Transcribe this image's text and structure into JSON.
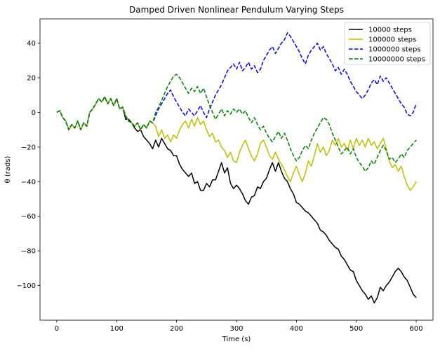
{
  "chart_data": {
    "type": "line",
    "title": "Damped Driven Nonlinear Pendulum Varying Steps",
    "xlabel": "Time (s)",
    "ylabel": "θ (rads)",
    "xlim": [
      -28,
      628
    ],
    "ylim": [
      -120,
      54
    ],
    "xticks": [
      0,
      100,
      200,
      300,
      400,
      500,
      600
    ],
    "yticks": [
      -100,
      -80,
      -60,
      -40,
      -20,
      0,
      20,
      40
    ],
    "legend_position": "top-right",
    "grid": false,
    "series": [
      {
        "name": "10000 steps",
        "color": "#000000",
        "dash": "solid",
        "x": [
          0,
          5,
          10,
          15,
          20,
          25,
          30,
          35,
          40,
          45,
          50,
          55,
          60,
          65,
          70,
          75,
          80,
          85,
          90,
          95,
          100,
          105,
          110,
          115,
          120,
          125,
          130,
          135,
          140,
          145,
          150,
          155,
          160,
          165,
          170,
          175,
          180,
          185,
          190,
          195,
          200,
          205,
          210,
          215,
          220,
          225,
          230,
          235,
          240,
          245,
          250,
          255,
          260,
          265,
          270,
          275,
          280,
          285,
          290,
          295,
          300,
          305,
          310,
          315,
          320,
          325,
          330,
          335,
          340,
          345,
          350,
          355,
          360,
          365,
          370,
          375,
          380,
          385,
          390,
          395,
          400,
          405,
          410,
          415,
          420,
          425,
          430,
          435,
          440,
          445,
          450,
          455,
          460,
          465,
          470,
          475,
          480,
          485,
          490,
          495,
          500,
          505,
          510,
          515,
          520,
          525,
          530,
          535,
          540,
          545,
          550,
          555,
          560,
          565,
          570,
          575,
          580,
          585,
          590,
          595,
          600
        ],
        "y": [
          0,
          1,
          -3,
          -5,
          -10,
          -7,
          -9,
          -5,
          -10,
          -6,
          -8,
          0,
          2,
          5,
          8,
          6,
          9,
          5,
          8,
          4,
          8,
          2,
          3,
          -4,
          -4,
          -6,
          -9,
          -11,
          -10,
          -14,
          -16,
          -18,
          -21,
          -16,
          -20,
          -15,
          -18,
          -21,
          -22,
          -25,
          -25,
          -30,
          -33,
          -35,
          -37,
          -35,
          -41,
          -40,
          -45,
          -45,
          -41,
          -43,
          -39,
          -39,
          -34,
          -29,
          -35,
          -32,
          -41,
          -44,
          -42,
          -44,
          -47,
          -51,
          -53,
          -49,
          -48,
          -43,
          -44,
          -40,
          -38,
          -33,
          -29,
          -34,
          -29,
          -34,
          -38,
          -40,
          -44,
          -47,
          -52,
          -53,
          -55,
          -57,
          -58,
          -60,
          -62,
          -64,
          -68,
          -69,
          -71,
          -74,
          -76,
          -78,
          -79,
          -83,
          -85,
          -88,
          -91,
          -92,
          -97,
          -100,
          -103,
          -105,
          -108,
          -106,
          -110,
          -107,
          -101,
          -103,
          -100,
          -98,
          -95,
          -92,
          -90,
          -92,
          -95,
          -97,
          -101,
          -105,
          -107
        ]
      },
      {
        "name": "100000 steps",
        "color": "#bfbf00",
        "dash": "solid",
        "x": [
          0,
          5,
          10,
          15,
          20,
          25,
          30,
          35,
          40,
          45,
          50,
          55,
          60,
          65,
          70,
          75,
          80,
          85,
          90,
          95,
          100,
          105,
          110,
          115,
          120,
          125,
          130,
          135,
          140,
          145,
          150,
          155,
          160,
          165,
          170,
          175,
          180,
          185,
          190,
          195,
          200,
          205,
          210,
          215,
          220,
          225,
          230,
          235,
          240,
          245,
          250,
          255,
          260,
          265,
          270,
          275,
          280,
          285,
          290,
          295,
          300,
          305,
          310,
          315,
          320,
          325,
          330,
          335,
          340,
          345,
          350,
          355,
          360,
          365,
          370,
          375,
          380,
          385,
          390,
          395,
          400,
          405,
          410,
          415,
          420,
          425,
          430,
          435,
          440,
          445,
          450,
          455,
          460,
          465,
          470,
          475,
          480,
          485,
          490,
          495,
          500,
          505,
          510,
          515,
          520,
          525,
          530,
          535,
          540,
          545,
          550,
          555,
          560,
          565,
          570,
          575,
          580,
          585,
          590,
          595,
          600
        ],
        "y": [
          0,
          1,
          -3,
          -5,
          -10,
          -7,
          -9,
          -5,
          -10,
          -6,
          -8,
          0,
          2,
          5,
          8,
          6,
          9,
          5,
          8,
          4,
          8,
          2,
          3,
          -2,
          -5,
          -6,
          -8,
          -6,
          -10,
          -7,
          -9,
          -5,
          -6,
          -8,
          -14,
          -10,
          -15,
          -13,
          -17,
          -13,
          -15,
          -10,
          -7,
          -5,
          -9,
          -4,
          -8,
          -3,
          -7,
          -5,
          -10,
          -14,
          -12,
          -17,
          -16,
          -20,
          -22,
          -26,
          -23,
          -28,
          -29,
          -23,
          -19,
          -16,
          -21,
          -25,
          -28,
          -24,
          -18,
          -16,
          -20,
          -25,
          -27,
          -23,
          -27,
          -30,
          -33,
          -37,
          -40,
          -35,
          -31,
          -36,
          -40,
          -35,
          -28,
          -31,
          -25,
          -18,
          -23,
          -20,
          -25,
          -22,
          -16,
          -19,
          -15,
          -20,
          -18,
          -22,
          -16,
          -21,
          -15,
          -19,
          -16,
          -20,
          -15,
          -19,
          -17,
          -21,
          -18,
          -15,
          -21,
          -28,
          -32,
          -30,
          -34,
          -31,
          -37,
          -42,
          -45,
          -43,
          -40
        ]
      },
      {
        "name": "1000000 steps",
        "color": "#0000ff",
        "dash": "dashed",
        "x": [
          0,
          5,
          10,
          15,
          20,
          25,
          30,
          35,
          40,
          45,
          50,
          55,
          60,
          65,
          70,
          75,
          80,
          85,
          90,
          95,
          100,
          105,
          110,
          115,
          120,
          125,
          130,
          135,
          140,
          145,
          150,
          155,
          160,
          165,
          170,
          175,
          180,
          185,
          190,
          195,
          200,
          205,
          210,
          215,
          220,
          225,
          230,
          235,
          240,
          245,
          250,
          255,
          260,
          265,
          270,
          275,
          280,
          285,
          290,
          295,
          300,
          305,
          310,
          315,
          320,
          325,
          330,
          335,
          340,
          345,
          350,
          355,
          360,
          365,
          370,
          375,
          380,
          385,
          390,
          395,
          400,
          405,
          410,
          415,
          420,
          425,
          430,
          435,
          440,
          445,
          450,
          455,
          460,
          465,
          470,
          475,
          480,
          485,
          490,
          495,
          500,
          505,
          510,
          515,
          520,
          525,
          530,
          535,
          540,
          545,
          550,
          555,
          560,
          565,
          570,
          575,
          580,
          585,
          590,
          595,
          600
        ],
        "y": [
          0,
          1,
          -3,
          -5,
          -10,
          -7,
          -9,
          -5,
          -10,
          -6,
          -8,
          0,
          2,
          5,
          8,
          6,
          9,
          5,
          8,
          4,
          8,
          2,
          3,
          -2,
          -5,
          -6,
          -8,
          -6,
          -10,
          -7,
          -9,
          -5,
          -6,
          -2,
          2,
          5,
          8,
          11,
          13,
          9,
          6,
          3,
          0,
          -2,
          2,
          0,
          -2,
          1,
          4,
          0,
          -3,
          2,
          6,
          10,
          13,
          16,
          20,
          24,
          26,
          28,
          25,
          29,
          24,
          26,
          29,
          25,
          27,
          23,
          25,
          30,
          33,
          36,
          38,
          34,
          37,
          40,
          42,
          46,
          44,
          41,
          38,
          35,
          31,
          28,
          33,
          36,
          38,
          40,
          36,
          38,
          34,
          31,
          28,
          24,
          26,
          22,
          25,
          22,
          18,
          15,
          12,
          10,
          8,
          10,
          13,
          17,
          19,
          16,
          21,
          18,
          20,
          17,
          14,
          11,
          8,
          5,
          3,
          -1,
          -2,
          0,
          5
        ]
      },
      {
        "name": "10000000 steps",
        "color": "#008000",
        "dash": "dashed",
        "x": [
          0,
          5,
          10,
          15,
          20,
          25,
          30,
          35,
          40,
          45,
          50,
          55,
          60,
          65,
          70,
          75,
          80,
          85,
          90,
          95,
          100,
          105,
          110,
          115,
          120,
          125,
          130,
          135,
          140,
          145,
          150,
          155,
          160,
          165,
          170,
          175,
          180,
          185,
          190,
          195,
          200,
          205,
          210,
          215,
          220,
          225,
          230,
          235,
          240,
          245,
          250,
          255,
          260,
          265,
          270,
          275,
          280,
          285,
          290,
          295,
          300,
          305,
          310,
          315,
          320,
          325,
          330,
          335,
          340,
          345,
          350,
          355,
          360,
          365,
          370,
          375,
          380,
          385,
          390,
          395,
          400,
          405,
          410,
          415,
          420,
          425,
          430,
          435,
          440,
          445,
          450,
          455,
          460,
          465,
          470,
          475,
          480,
          485,
          490,
          495,
          500,
          505,
          510,
          515,
          520,
          525,
          530,
          535,
          540,
          545,
          550,
          555,
          560,
          565,
          570,
          575,
          580,
          585,
          590,
          595,
          600
        ],
        "y": [
          0,
          1,
          -3,
          -5,
          -10,
          -7,
          -9,
          -5,
          -10,
          -6,
          -8,
          0,
          2,
          5,
          8,
          6,
          9,
          5,
          8,
          4,
          8,
          2,
          3,
          -2,
          -5,
          -6,
          -8,
          -6,
          -10,
          -7,
          -9,
          -5,
          -6,
          0,
          3,
          7,
          11,
          15,
          18,
          21,
          22,
          20,
          17,
          14,
          11,
          14,
          12,
          15,
          11,
          14,
          9,
          4,
          0,
          -4,
          -1,
          2,
          -2,
          1,
          -1,
          2,
          0,
          2,
          -1,
          1,
          -3,
          -6,
          -3,
          -7,
          -10,
          -8,
          -12,
          -15,
          -17,
          -14,
          -11,
          -15,
          -12,
          -16,
          -21,
          -25,
          -28,
          -26,
          -22,
          -19,
          -21,
          -16,
          -12,
          -9,
          -6,
          -3,
          -4,
          -7,
          -12,
          -16,
          -20,
          -24,
          -22,
          -20,
          -24,
          -21,
          -26,
          -29,
          -31,
          -34,
          -32,
          -28,
          -30,
          -26,
          -22,
          -19,
          -22,
          -27,
          -26,
          -29,
          -27,
          -24,
          -26,
          -22,
          -20,
          -18,
          -16
        ]
      }
    ]
  }
}
